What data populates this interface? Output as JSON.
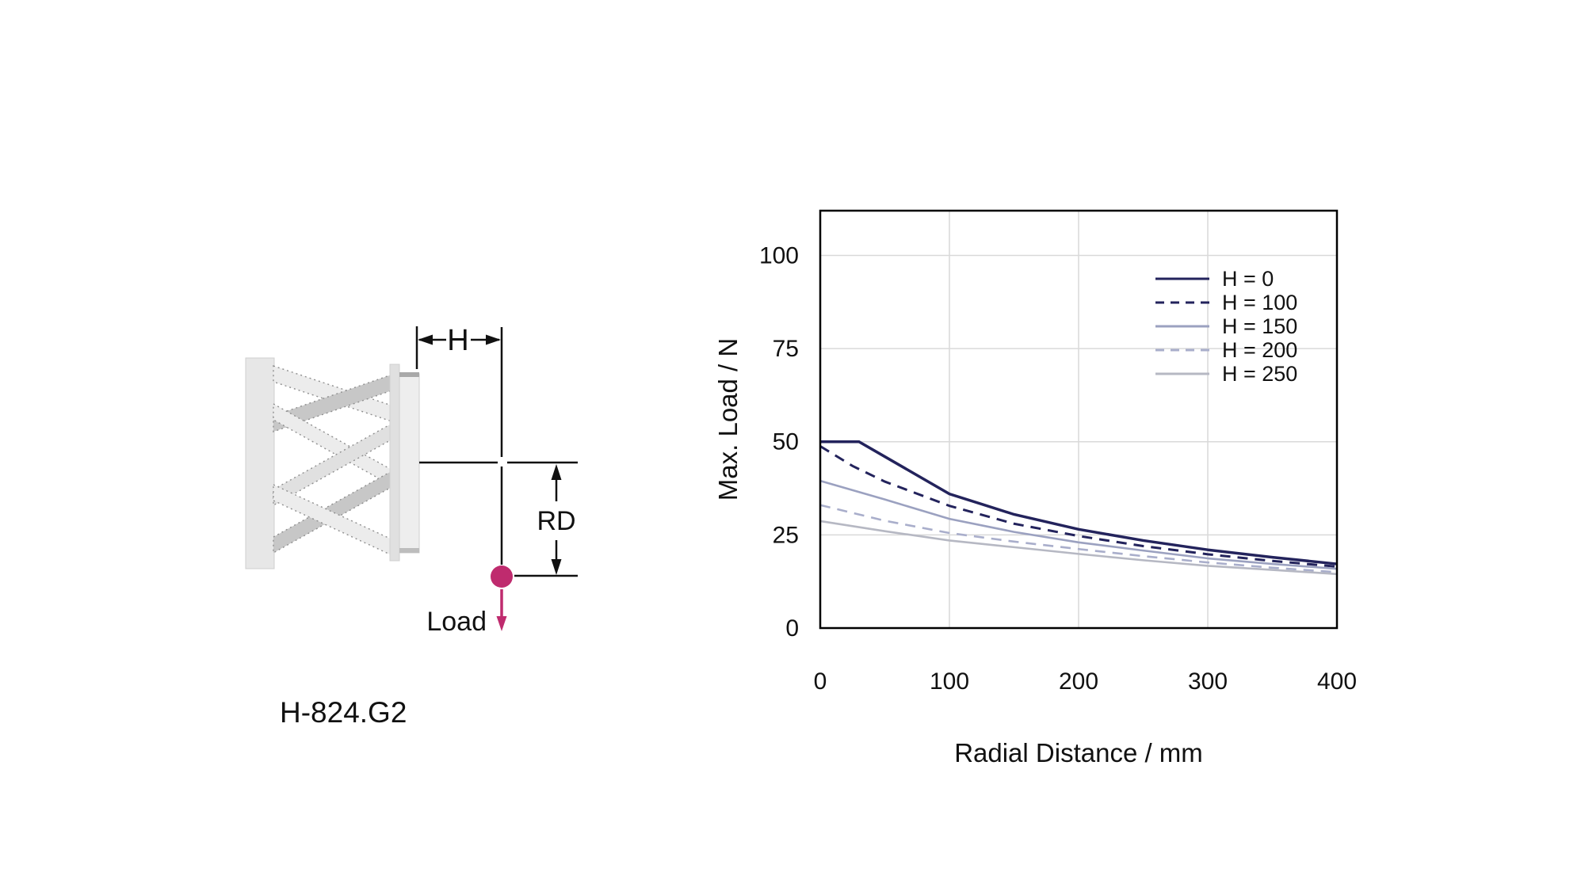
{
  "page": {
    "background": "#ffffff"
  },
  "diagram": {
    "model_label": "H-824.G2",
    "h_label": "H",
    "rd_label": "RD",
    "load_label": "Load",
    "accent_color": "#bf2b6e"
  },
  "chart_data": {
    "type": "line",
    "title": "",
    "xlabel": "Radial Distance / mm",
    "ylabel": "Max. Load / N",
    "xlim": [
      0,
      400
    ],
    "ylim": [
      0,
      112
    ],
    "xticks": [
      0,
      100,
      200,
      300,
      400
    ],
    "yticks": [
      0,
      25,
      50,
      75,
      100
    ],
    "grid": true,
    "grid_color": "#d9d9d9",
    "axis_color": "#000000",
    "legend_position": "top-right",
    "series": [
      {
        "name": "H = 0",
        "color": "#23235c",
        "style": "solid",
        "width": 3.5,
        "x": [
          0,
          30,
          50,
          100,
          150,
          200,
          250,
          300,
          350,
          400
        ],
        "y": [
          50,
          50,
          46,
          36,
          30.5,
          26.5,
          23.5,
          21,
          19,
          17.2
        ]
      },
      {
        "name": "H = 100",
        "color": "#23235c",
        "style": "dashed",
        "width": 3,
        "x": [
          0,
          25,
          50,
          100,
          150,
          200,
          250,
          300,
          350,
          400
        ],
        "y": [
          48.8,
          43.5,
          39.3,
          32.8,
          28,
          24.7,
          22,
          19.8,
          18,
          16.5
        ]
      },
      {
        "name": "H = 150",
        "color": "#9ba1c0",
        "style": "solid",
        "width": 2.6,
        "x": [
          0,
          50,
          100,
          150,
          200,
          250,
          300,
          350,
          400
        ],
        "y": [
          39.5,
          34.5,
          29.3,
          25.8,
          23,
          20.8,
          18.7,
          17.2,
          15.9
        ]
      },
      {
        "name": "H = 200",
        "color": "#a9aecb",
        "style": "dashed",
        "width": 2.6,
        "x": [
          0,
          50,
          100,
          150,
          200,
          250,
          300,
          350,
          400
        ],
        "y": [
          33,
          28.8,
          25.5,
          23.2,
          21.2,
          19.3,
          17.6,
          16.2,
          15
        ]
      },
      {
        "name": "H = 250",
        "color": "#b6b8c3",
        "style": "solid",
        "width": 2.6,
        "x": [
          0,
          50,
          100,
          150,
          200,
          250,
          300,
          350,
          400
        ],
        "y": [
          28.7,
          26,
          23.5,
          21.7,
          19.9,
          18.2,
          16.7,
          15.6,
          14.5
        ]
      }
    ]
  }
}
